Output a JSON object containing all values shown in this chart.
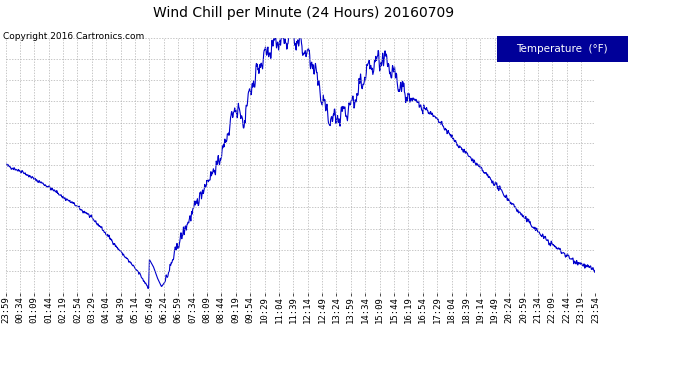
{
  "title": "Wind Chill per Minute (24 Hours) 20160709",
  "copyright": "Copyright 2016 Cartronics.com",
  "legend_label": "Temperature  (°F)",
  "line_color": "#0000cc",
  "bg_color": "#ffffff",
  "plot_bg_color": "#ffffff",
  "grid_color": "#b0b0b0",
  "ylim": [
    62.2,
    79.8
  ],
  "yticks": [
    62.2,
    63.7,
    65.1,
    66.6,
    68.1,
    69.5,
    71.0,
    72.5,
    73.9,
    75.4,
    76.9,
    78.3,
    79.8
  ],
  "xtick_labels": [
    "23:59",
    "00:34",
    "01:09",
    "01:44",
    "02:19",
    "02:54",
    "03:29",
    "04:04",
    "04:39",
    "05:14",
    "05:49",
    "06:24",
    "06:59",
    "07:34",
    "08:09",
    "08:44",
    "09:19",
    "09:54",
    "10:29",
    "11:04",
    "11:39",
    "12:14",
    "12:49",
    "13:24",
    "13:59",
    "14:34",
    "15:09",
    "15:44",
    "16:19",
    "16:54",
    "17:29",
    "18:04",
    "18:39",
    "19:14",
    "19:49",
    "20:24",
    "20:59",
    "21:34",
    "22:09",
    "22:44",
    "23:19",
    "23:54"
  ],
  "title_fontsize": 10,
  "tick_fontsize": 6.5,
  "ytick_fontsize": 8
}
